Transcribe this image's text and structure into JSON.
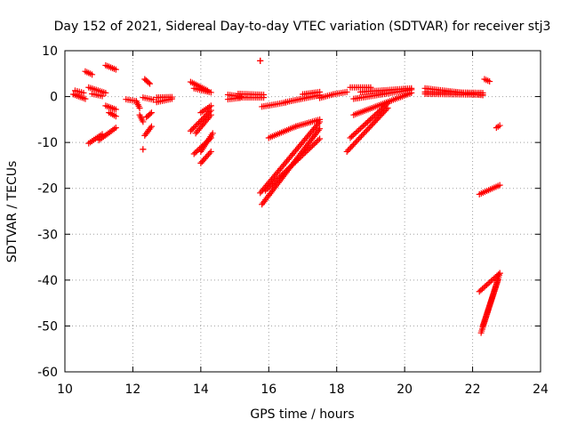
{
  "colors": {
    "marker": "#ff0000",
    "grid": "#a0a0a0",
    "frame": "#000000"
  },
  "chart_data": {
    "type": "scatter",
    "title": "Day 152 of 2021, Sidereal Day-to-day VTEC variation (SDTVAR) for receiver stj3",
    "xlabel": "GPS time / hours",
    "ylabel": "SDTVAR / TECUs",
    "xlim": [
      10,
      24
    ],
    "ylim": [
      -60,
      10
    ],
    "xticks": [
      10,
      12,
      14,
      16,
      18,
      20,
      22,
      24
    ],
    "yticks": [
      -60,
      -50,
      -40,
      -30,
      -20,
      -10,
      0,
      10
    ],
    "grid": true,
    "marker": "+",
    "segments": [
      {
        "x0": 10.25,
        "x1": 10.6,
        "y0": 0.5,
        "y1": -0.5
      },
      {
        "x0": 10.3,
        "x1": 10.55,
        "y0": 1.3,
        "y1": 0.8
      },
      {
        "x0": 10.6,
        "x1": 10.8,
        "y0": 5.5,
        "y1": 4.8
      },
      {
        "x0": 10.7,
        "x1": 11.2,
        "y0": 2.0,
        "y1": 0.8
      },
      {
        "x0": 10.8,
        "x1": 11.1,
        "y0": 0.6,
        "y1": 0.1
      },
      {
        "x0": 10.7,
        "x1": 11.1,
        "y0": -10.2,
        "y1": -8.2
      },
      {
        "x0": 11.0,
        "x1": 11.5,
        "y0": -9.5,
        "y1": -6.8
      },
      {
        "x0": 11.2,
        "x1": 11.5,
        "y0": 6.8,
        "y1": 5.9
      },
      {
        "x0": 11.2,
        "x1": 11.5,
        "y0": -2.0,
        "y1": -2.8
      },
      {
        "x0": 11.3,
        "x1": 11.5,
        "y0": -3.5,
        "y1": -4.3
      },
      {
        "x0": 11.8,
        "x1": 12.1,
        "y0": -0.6,
        "y1": -1.0
      },
      {
        "x0": 12.1,
        "x1": 12.2,
        "y0": -1.0,
        "y1": -2.5
      },
      {
        "x0": 12.2,
        "x1": 12.3,
        "y0": -4.0,
        "y1": -5.5
      },
      {
        "x0": 12.3,
        "x1": 12.3,
        "y0": -11.5,
        "y1": -11.5
      },
      {
        "x0": 12.35,
        "x1": 12.5,
        "y0": 3.8,
        "y1": 2.8
      },
      {
        "x0": 12.3,
        "x1": 12.6,
        "y0": -0.2,
        "y1": -0.7
      },
      {
        "x0": 12.35,
        "x1": 12.55,
        "y0": -8.5,
        "y1": -6.5
      },
      {
        "x0": 12.4,
        "x1": 12.55,
        "y0": -4.5,
        "y1": -3.5
      },
      {
        "x0": 12.7,
        "x1": 13.15,
        "y0": -1.2,
        "y1": -0.5
      },
      {
        "x0": 12.7,
        "x1": 13.15,
        "y0": -0.2,
        "y1": -0.1
      },
      {
        "x0": 13.7,
        "x1": 14.2,
        "y0": 3.2,
        "y1": 1.3
      },
      {
        "x0": 13.8,
        "x1": 14.3,
        "y0": 1.8,
        "y1": 0.9
      },
      {
        "x0": 13.7,
        "x1": 14.3,
        "y0": -7.5,
        "y1": -3.0
      },
      {
        "x0": 13.8,
        "x1": 14.3,
        "y0": -12.5,
        "y1": -9.0
      },
      {
        "x0": 13.85,
        "x1": 14.3,
        "y0": -8.0,
        "y1": -4.0
      },
      {
        "x0": 14.0,
        "x1": 14.35,
        "y0": -12.0,
        "y1": -8.0
      },
      {
        "x0": 14.0,
        "x1": 14.3,
        "y0": -3.5,
        "y1": -2.0
      },
      {
        "x0": 14.0,
        "x1": 14.3,
        "y0": -14.5,
        "y1": -12.0
      },
      {
        "x0": 14.8,
        "x1": 15.15,
        "y0": -0.6,
        "y1": -0.3
      },
      {
        "x0": 14.8,
        "x1": 15.2,
        "y0": 0.4,
        "y1": 0.0
      },
      {
        "x0": 15.1,
        "x1": 15.85,
        "y0": -0.2,
        "y1": -0.2
      },
      {
        "x0": 15.1,
        "x1": 15.85,
        "y0": 0.6,
        "y1": 0.4
      },
      {
        "x0": 15.75,
        "x1": 15.75,
        "y0": 7.8,
        "y1": 7.8
      },
      {
        "x0": 15.8,
        "x1": 16.5,
        "y0": -2.2,
        "y1": -1.3
      },
      {
        "x0": 16.5,
        "x1": 17.5,
        "y0": -1.2,
        "y1": 0.3
      },
      {
        "x0": 17.0,
        "x1": 17.5,
        "y0": 0.5,
        "y1": 1.0
      },
      {
        "x0": 17.5,
        "x1": 17.9,
        "y0": -0.3,
        "y1": 0.5
      },
      {
        "x0": 17.9,
        "x1": 18.3,
        "y0": 0.5,
        "y1": 1.0
      },
      {
        "x0": 15.75,
        "x1": 17.5,
        "y0": -21.0,
        "y1": -5.5
      },
      {
        "x0": 15.8,
        "x1": 17.5,
        "y0": -23.5,
        "y1": -7.0
      },
      {
        "x0": 15.9,
        "x1": 17.5,
        "y0": -20.5,
        "y1": -9.2
      },
      {
        "x0": 16.0,
        "x1": 16.8,
        "y0": -9.0,
        "y1": -6.5
      },
      {
        "x0": 16.8,
        "x1": 17.5,
        "y0": -6.5,
        "y1": -5.0
      },
      {
        "x0": 18.3,
        "x1": 19.5,
        "y0": -12.0,
        "y1": -2.5
      },
      {
        "x0": 18.4,
        "x1": 19.5,
        "y0": -9.0,
        "y1": -1.5
      },
      {
        "x0": 18.5,
        "x1": 20.2,
        "y0": -4.0,
        "y1": 0.8
      },
      {
        "x0": 18.5,
        "x1": 20.2,
        "y0": -0.5,
        "y1": 1.5
      },
      {
        "x0": 18.7,
        "x1": 20.2,
        "y0": 1.0,
        "y1": 1.8
      },
      {
        "x0": 18.4,
        "x1": 19.0,
        "y0": 2.0,
        "y1": 2.0
      },
      {
        "x0": 20.6,
        "x1": 22.3,
        "y0": 1.8,
        "y1": 0.3
      },
      {
        "x0": 20.6,
        "x1": 22.3,
        "y0": 1.0,
        "y1": 0.8
      },
      {
        "x0": 20.6,
        "x1": 22.3,
        "y0": 0.6,
        "y1": 0.4
      },
      {
        "x0": 22.35,
        "x1": 22.5,
        "y0": 3.8,
        "y1": 3.3
      },
      {
        "x0": 22.7,
        "x1": 22.8,
        "y0": -6.8,
        "y1": -6.3
      },
      {
        "x0": 22.2,
        "x1": 22.8,
        "y0": -21.3,
        "y1": -19.3
      },
      {
        "x0": 22.2,
        "x1": 22.8,
        "y0": -42.5,
        "y1": -38.5
      },
      {
        "x0": 22.25,
        "x1": 22.8,
        "y0": -51.5,
        "y1": -38.5
      },
      {
        "x0": 22.3,
        "x1": 22.75,
        "y0": -50.0,
        "y1": -40.0
      }
    ]
  }
}
